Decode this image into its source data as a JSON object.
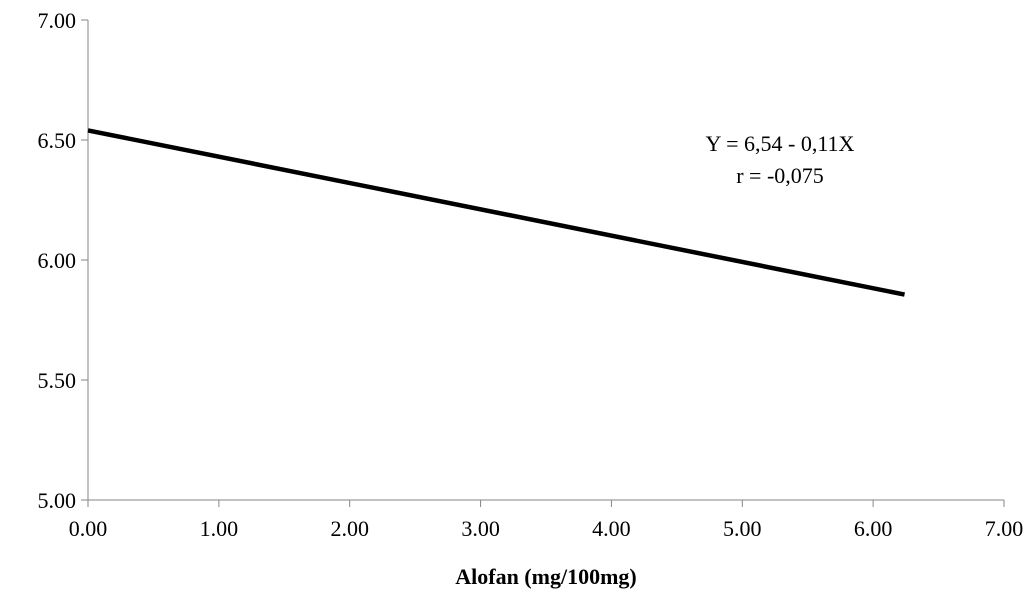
{
  "chart_data": {
    "type": "line",
    "title": "",
    "xlabel": "Alofan (mg/100mg)",
    "ylabel": "",
    "xlim": [
      0,
      7
    ],
    "ylim": [
      5,
      7
    ],
    "x_ticks": [
      "0.00",
      "1.00",
      "2.00",
      "3.00",
      "4.00",
      "5.00",
      "6.00",
      "7.00"
    ],
    "y_ticks": [
      "5.00",
      "5.50",
      "6.00",
      "6.50",
      "7.00"
    ],
    "grid": false,
    "series": [
      {
        "x": [
          0,
          6.24
        ],
        "y": [
          6.54,
          5.856
        ],
        "color": "#000000"
      }
    ],
    "annotations": [
      "Y = 6,54 - 0,11X",
      "r = -0,075"
    ]
  }
}
